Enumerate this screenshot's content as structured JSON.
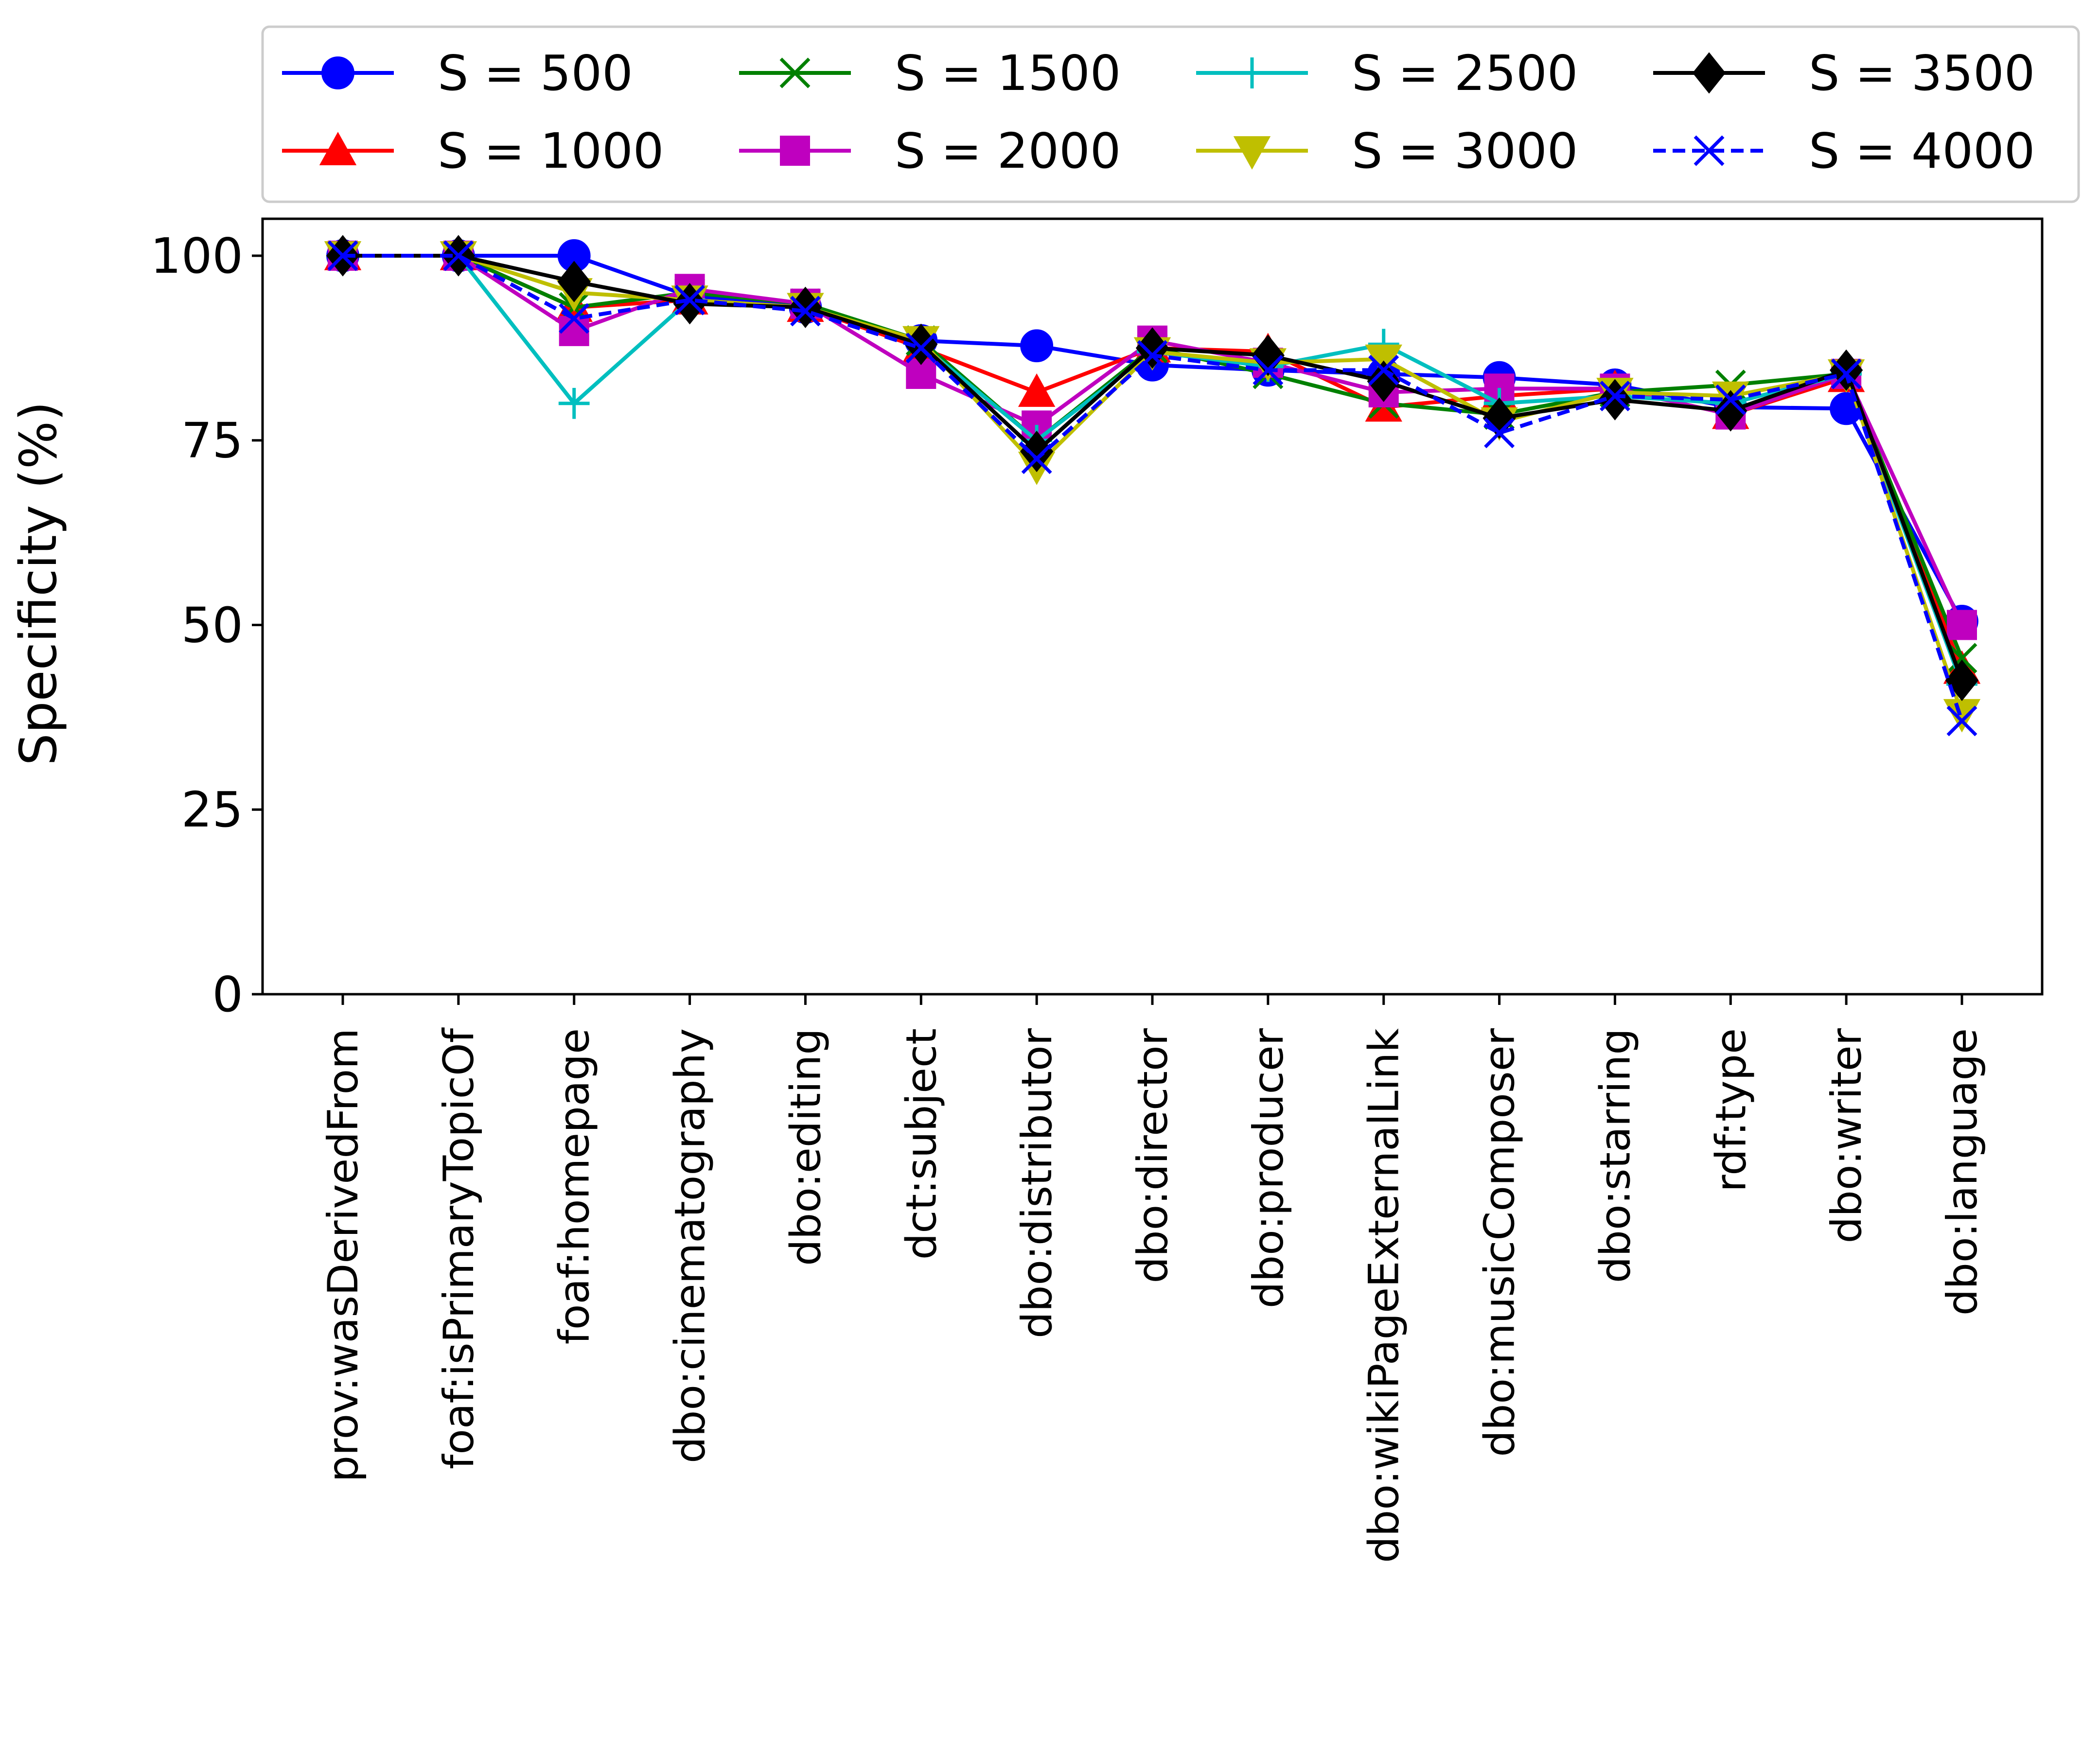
{
  "chart_data": {
    "type": "line",
    "title": "",
    "xlabel": "",
    "ylabel": "Specificity (%)",
    "ylim": [
      0,
      105
    ],
    "yticks": [
      0,
      25,
      50,
      75,
      100
    ],
    "grid": false,
    "legend_position": "top",
    "categories": [
      "prov:wasDerivedFrom",
      "foaf:isPrimaryTopicOf",
      "foaf:homepage",
      "dbo:cinematography",
      "dbo:editing",
      "dct:subject",
      "dbo:distributor",
      "dbo:director",
      "dbo:producer",
      "dbo:wikiPageExternalLink",
      "dbo:musicComposer",
      "dbo:starring",
      "rdf:type",
      "dbo:writer",
      "dbo:language"
    ],
    "series": [
      {
        "name": "S = 500",
        "color": "#0000ff",
        "marker": "circle",
        "dash": "solid",
        "values": [
          100,
          100,
          100,
          94.5,
          93,
          88.5,
          87.8,
          85.2,
          84.5,
          84,
          83.5,
          82.5,
          79.5,
          79.3,
          50.5
        ]
      },
      {
        "name": "S = 1000",
        "color": "#ff0000",
        "marker": "triangle-up",
        "dash": "solid",
        "values": [
          100,
          100,
          93,
          94,
          93,
          87.5,
          81.5,
          87.5,
          87,
          79.5,
          81,
          82,
          78.5,
          83.5,
          44
        ]
      },
      {
        "name": "S = 1500",
        "color": "#008000",
        "marker": "x",
        "dash": "solid",
        "values": [
          100,
          100,
          93,
          95,
          93.5,
          88.5,
          75,
          87.5,
          84,
          80,
          78.5,
          81.5,
          82.5,
          84,
          45.5
        ]
      },
      {
        "name": "S = 2000",
        "color": "#bf00bf",
        "marker": "square",
        "dash": "solid",
        "values": [
          100,
          100,
          89.8,
          95.5,
          93.5,
          84,
          77,
          88.5,
          85.5,
          81.5,
          82,
          82,
          78.5,
          84,
          50
        ]
      },
      {
        "name": "S = 2500",
        "color": "#00bfbf",
        "marker": "plus",
        "dash": "solid",
        "values": [
          100,
          100,
          80,
          94,
          93,
          88,
          75,
          87,
          85,
          88,
          80,
          81,
          80,
          84,
          42
        ]
      },
      {
        "name": "S = 3000",
        "color": "#bfbf00",
        "marker": "triangle-down",
        "dash": "solid",
        "values": [
          100,
          100,
          95,
          94,
          93,
          88.5,
          71.5,
          87,
          85.5,
          86,
          77.5,
          81.5,
          81,
          84,
          38
        ]
      },
      {
        "name": "S = 3500",
        "color": "#000000",
        "marker": "diamond",
        "dash": "solid",
        "values": [
          100,
          100,
          96.5,
          93.5,
          93,
          88,
          73.5,
          87.5,
          86.5,
          83,
          78,
          80.5,
          79,
          84.5,
          42.5
        ]
      },
      {
        "name": "S = 4000",
        "color": "#0000ff",
        "marker": "x",
        "dash": "dashed",
        "values": [
          100,
          100,
          91.5,
          94,
          92.5,
          87.5,
          72.5,
          86.5,
          84.5,
          84.5,
          76,
          81,
          80.5,
          84,
          37
        ]
      }
    ]
  }
}
